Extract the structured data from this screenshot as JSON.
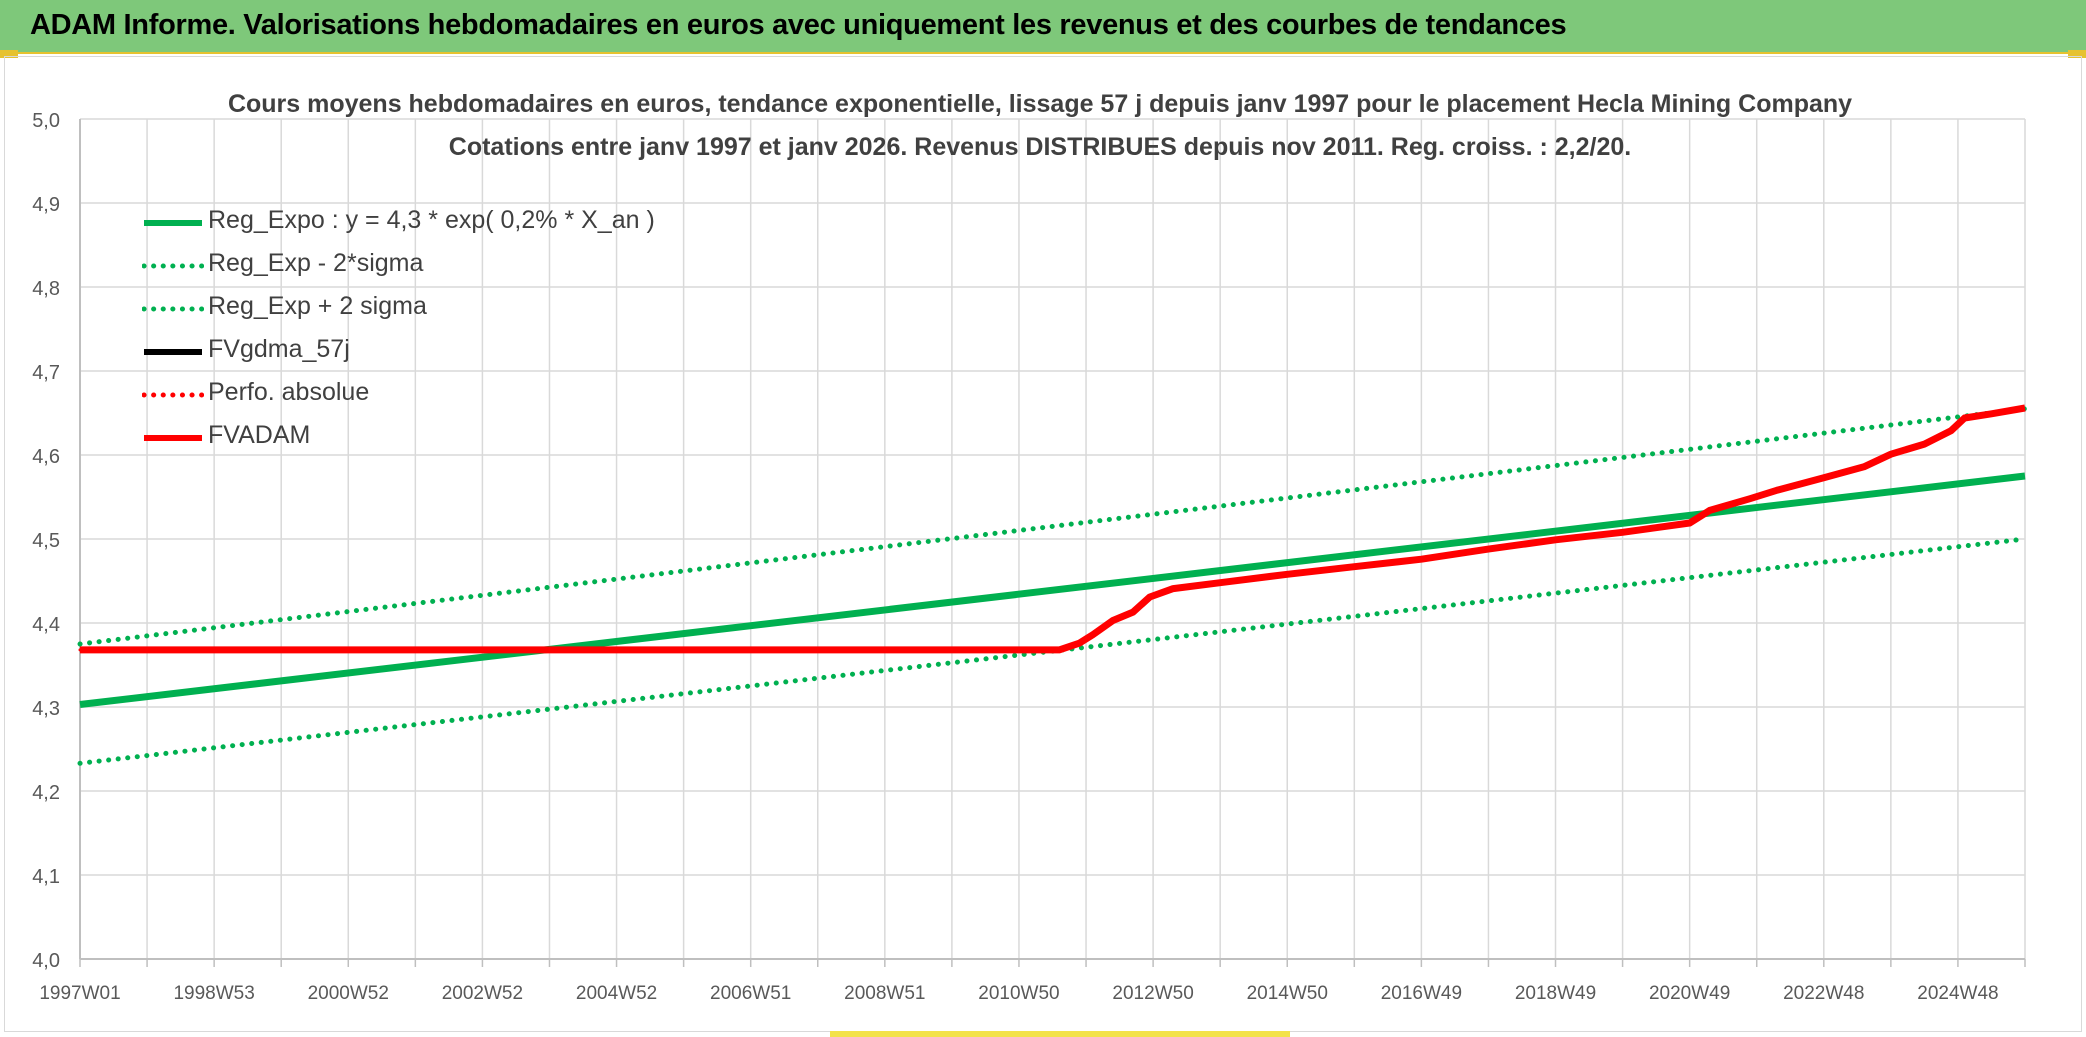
{
  "header": {
    "title": "ADAM Informe. Valorisations hebdomadaires en euros avec uniquement les revenus et des courbes de tendances"
  },
  "chart_data": {
    "type": "line",
    "title": "Cours moyens hebdomadaires en euros, tendance exponentielle, lissage 57 j depuis janv 1997 pour le placement Hecla Mining Company",
    "subtitle": "Cotations entre janv 1997 et janv 2026. Revenus DISTRIBUES depuis nov 2011. Reg. croiss. : 2,2/20.",
    "xlabel": "",
    "ylabel": "",
    "x_range": [
      1997.0,
      2026.0
    ],
    "x_ticks": [
      {
        "label": "1997W01",
        "x": 1997.0
      },
      {
        "label": "1998W53",
        "x": 1999.0
      },
      {
        "label": "2000W52",
        "x": 2001.0
      },
      {
        "label": "2002W52",
        "x": 2003.0
      },
      {
        "label": "2004W52",
        "x": 2005.0
      },
      {
        "label": "2006W51",
        "x": 2007.0
      },
      {
        "label": "2008W51",
        "x": 2009.0
      },
      {
        "label": "2010W50",
        "x": 2011.0
      },
      {
        "label": "2012W50",
        "x": 2013.0
      },
      {
        "label": "2014W50",
        "x": 2015.0
      },
      {
        "label": "2016W49",
        "x": 2017.0
      },
      {
        "label": "2018W49",
        "x": 2019.0
      },
      {
        "label": "2020W49",
        "x": 2021.0
      },
      {
        "label": "2022W48",
        "x": 2023.0
      },
      {
        "label": "2024W48",
        "x": 2025.0
      }
    ],
    "ylim": [
      4.0,
      5.0
    ],
    "y_ticks": [
      "4,0",
      "4,1",
      "4,2",
      "4,3",
      "4,4",
      "4,5",
      "4,6",
      "4,7",
      "4,8",
      "4,9",
      "5,0"
    ],
    "grid": true,
    "legend_position": "top-left",
    "series": [
      {
        "name": "Reg_Expo : y = 4,3 * exp( 0,2% *  X_an )",
        "color": "#00b050",
        "style": "solid",
        "points": [
          [
            1997.0,
            4.303
          ],
          [
            2026.0,
            4.575
          ]
        ]
      },
      {
        "name": "Reg_Exp - 2*sigma",
        "color": "#00b050",
        "style": "dotted",
        "points": [
          [
            1997.0,
            4.233
          ],
          [
            2026.0,
            4.5
          ]
        ]
      },
      {
        "name": "Reg_Exp + 2 sigma",
        "color": "#00b050",
        "style": "dotted",
        "points": [
          [
            1997.0,
            4.375
          ],
          [
            2026.0,
            4.655
          ]
        ]
      },
      {
        "name": "FVgdma_57j",
        "color": "#000000",
        "style": "solid",
        "points": [
          [
            1997.0,
            4.368
          ],
          [
            2011.6,
            4.368
          ],
          [
            2011.9,
            4.375
          ],
          [
            2012.1,
            4.385
          ],
          [
            2012.4,
            4.402
          ],
          [
            2012.7,
            4.412
          ],
          [
            2012.95,
            4.43
          ],
          [
            2013.3,
            4.44
          ],
          [
            2014.0,
            4.447
          ],
          [
            2015.0,
            4.457
          ],
          [
            2016.0,
            4.466
          ],
          [
            2017.0,
            4.475
          ],
          [
            2018.0,
            4.487
          ],
          [
            2019.0,
            4.498
          ],
          [
            2020.0,
            4.507
          ],
          [
            2021.0,
            4.518
          ],
          [
            2021.3,
            4.533
          ],
          [
            2021.9,
            4.547
          ],
          [
            2022.3,
            4.557
          ],
          [
            2023.0,
            4.572
          ],
          [
            2023.6,
            4.585
          ],
          [
            2024.0,
            4.6
          ],
          [
            2024.5,
            4.612
          ],
          [
            2024.9,
            4.628
          ],
          [
            2025.1,
            4.643
          ],
          [
            2025.5,
            4.648
          ],
          [
            2026.0,
            4.655
          ]
        ]
      },
      {
        "name": "Perfo. absolue",
        "color": "#ff0000",
        "style": "dotted",
        "points": [
          [
            1997.0,
            4.368
          ],
          [
            2011.6,
            4.368
          ],
          [
            2011.9,
            4.376
          ],
          [
            2012.1,
            4.386
          ],
          [
            2012.4,
            4.403
          ],
          [
            2012.7,
            4.413
          ],
          [
            2012.95,
            4.431
          ],
          [
            2013.3,
            4.441
          ],
          [
            2014.0,
            4.448
          ],
          [
            2015.0,
            4.458
          ],
          [
            2016.0,
            4.467
          ],
          [
            2017.0,
            4.476
          ],
          [
            2018.0,
            4.488
          ],
          [
            2019.0,
            4.499
          ],
          [
            2020.0,
            4.508
          ],
          [
            2021.0,
            4.519
          ],
          [
            2021.3,
            4.534
          ],
          [
            2021.9,
            4.548
          ],
          [
            2022.3,
            4.558
          ],
          [
            2023.0,
            4.573
          ],
          [
            2023.6,
            4.586
          ],
          [
            2024.0,
            4.601
          ],
          [
            2024.5,
            4.613
          ],
          [
            2024.9,
            4.629
          ],
          [
            2025.1,
            4.644
          ],
          [
            2025.5,
            4.649
          ],
          [
            2026.0,
            4.656
          ]
        ]
      },
      {
        "name": "FVADAM",
        "color": "#ff0000",
        "style": "solid",
        "points": [
          [
            1997.0,
            4.368
          ],
          [
            2011.6,
            4.368
          ],
          [
            2011.9,
            4.376
          ],
          [
            2012.1,
            4.386
          ],
          [
            2012.4,
            4.403
          ],
          [
            2012.7,
            4.413
          ],
          [
            2012.95,
            4.431
          ],
          [
            2013.3,
            4.441
          ],
          [
            2014.0,
            4.448
          ],
          [
            2015.0,
            4.458
          ],
          [
            2016.0,
            4.467
          ],
          [
            2017.0,
            4.476
          ],
          [
            2018.0,
            4.488
          ],
          [
            2019.0,
            4.499
          ],
          [
            2020.0,
            4.508
          ],
          [
            2021.0,
            4.519
          ],
          [
            2021.3,
            4.534
          ],
          [
            2021.9,
            4.548
          ],
          [
            2022.3,
            4.558
          ],
          [
            2023.0,
            4.573
          ],
          [
            2023.6,
            4.586
          ],
          [
            2024.0,
            4.601
          ],
          [
            2024.5,
            4.613
          ],
          [
            2024.9,
            4.629
          ],
          [
            2025.1,
            4.644
          ],
          [
            2025.5,
            4.649
          ],
          [
            2026.0,
            4.656
          ]
        ]
      }
    ]
  }
}
